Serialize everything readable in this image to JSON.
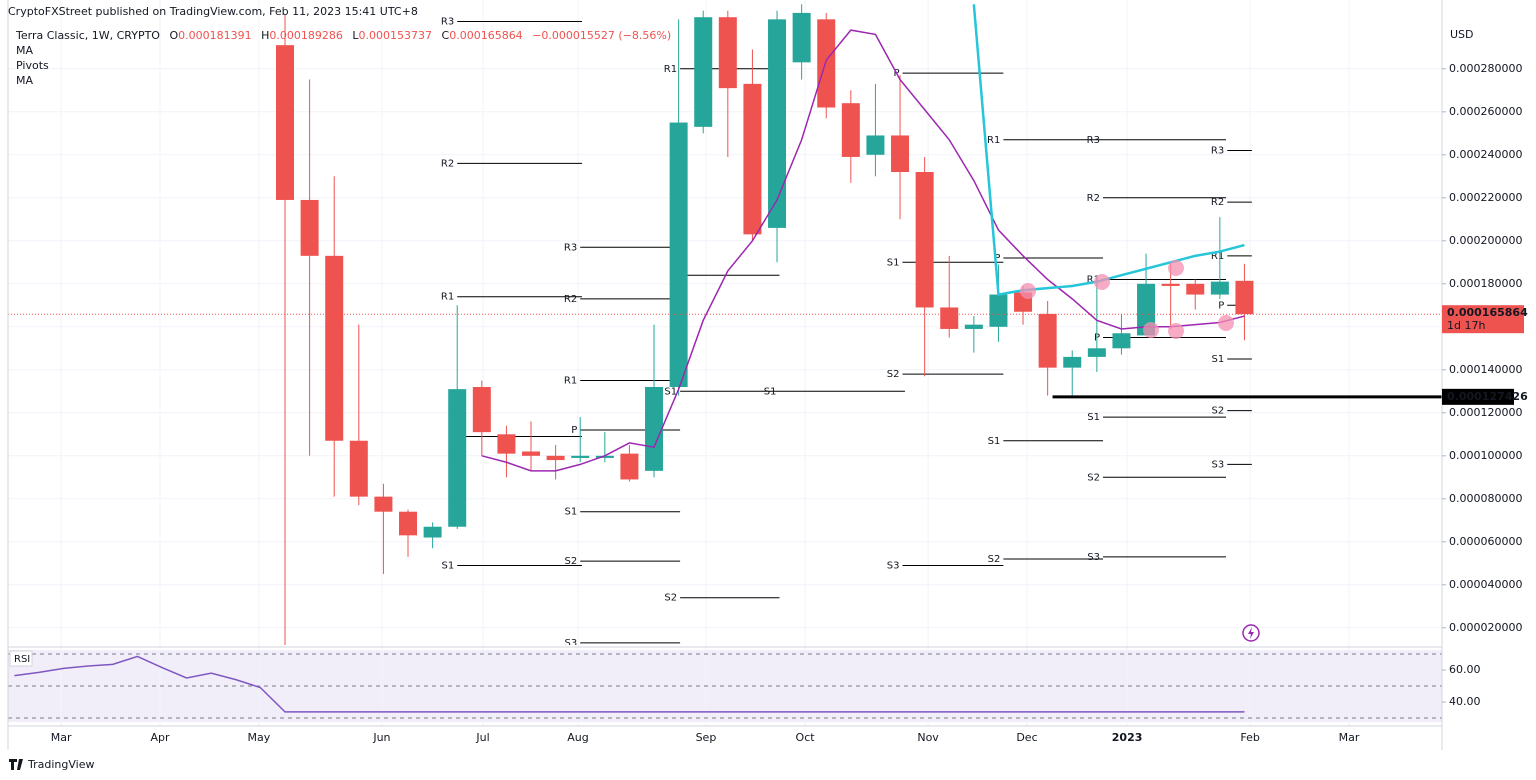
{
  "header": {
    "publisher": "CryptoFXStreet published on TradingView.com, Feb 11, 2023 15:41 UTC+8",
    "open_label": "O",
    "high_label": "H",
    "low_label": "L",
    "close_label": "C",
    "change": "−0.000015527 (−8.56%)",
    "brand": "TradingView"
  },
  "chart_data": [
    {
      "type": "candlestick",
      "title": "Terra Classic, 1W, CRYPTO",
      "axis_label": "USD",
      "up_color": "#26a69a",
      "down_color": "#ef5350",
      "x": [
        0,
        1,
        2,
        3,
        4,
        5,
        6,
        7,
        8,
        9,
        10,
        11,
        12,
        13,
        14,
        15,
        16,
        17,
        18,
        19,
        20,
        21,
        22,
        23,
        24,
        25,
        26,
        27,
        28,
        29,
        30,
        31,
        32,
        33,
        34,
        35,
        36,
        37,
        38,
        39
      ],
      "open": [
        0.000291,
        0.000219,
        0.000193,
        0.000107,
        8.1e-05,
        7.4e-05,
        6.2e-05,
        6.7e-05,
        0.000132,
        0.00011,
        0.000102,
        0.0001,
        9.9e-05,
        9.9e-05,
        0.000101,
        9.3e-05,
        0.000132,
        0.000253,
        0.000304,
        0.000273,
        0.000206,
        0.000283,
        0.000303,
        0.000264,
        0.00024,
        0.000249,
        0.000232,
        0.000169,
        0.000159,
        0.00016,
        0.000176,
        0.000166,
        0.000141,
        0.000146,
        0.00015,
        0.000156,
        0.00018,
        0.00018,
        0.000175,
        0.000181391
      ],
      "high": [
        0.000305,
        0.000275,
        0.00023,
        0.000161,
        8.7e-05,
        7.5e-05,
        6.9e-05,
        0.00017,
        0.000135,
        0.000114,
        0.000116,
        0.000105,
        0.000118,
        0.000111,
        0.000105,
        0.000161,
        0.000303,
        0.000307,
        0.000307,
        0.000289,
        0.000307,
        0.00031,
        0.000306,
        0.00027,
        0.000273,
        0.000277,
        0.000239,
        0.000193,
        0.000165,
        0.000189,
        0.000179,
        0.000172,
        0.000149,
        0.000184,
        0.000166,
        0.000194,
        0.00019,
        0.000182,
        0.000211,
        0.000189286
      ],
      "low": [
        1.2e-05,
        0.0001,
        8.1e-05,
        7.7e-05,
        4.5e-05,
        5.3e-05,
        5.7e-05,
        6.6e-05,
        0.0001,
        9e-05,
        9.3e-05,
        8.9e-05,
        9.7e-05,
        9.7e-05,
        8.8e-05,
        9e-05,
        0.000128,
        0.00025,
        0.000239,
        0.0002,
        0.00019,
        0.000275,
        0.000257,
        0.000227,
        0.00023,
        0.00021,
        0.000137,
        0.000155,
        0.000148,
        0.000153,
        0.000161,
        0.000128,
        0.000128,
        0.000139,
        0.000147,
        0.000156,
        0.000159,
        0.000168,
        0.000173,
        0.000153737
      ],
      "close": [
        0.000219,
        0.000193,
        0.000107,
        8.1e-05,
        7.4e-05,
        6.3e-05,
        6.7e-05,
        0.000131,
        0.000111,
        0.000101,
        0.0001,
        9.8e-05,
        0.0001,
        0.0001,
        8.9e-05,
        0.000132,
        0.000255,
        0.000304,
        0.000271,
        0.000203,
        0.000303,
        0.000306,
        0.000262,
        0.000239,
        0.000249,
        0.000232,
        0.000169,
        0.000159,
        0.000161,
        0.000175,
        0.000167,
        0.000141,
        0.000146,
        0.00015,
        0.000157,
        0.00018,
        0.000179,
        0.000175,
        0.000181,
        0.000165864
      ],
      "series": [
        {
          "name": "MA",
          "color": "#9c27b0",
          "values": [
            null,
            null,
            null,
            null,
            null,
            null,
            null,
            null,
            0.0001,
            9.7e-05,
            9.3e-05,
            9.3e-05,
            9.6e-05,
            0.0001,
            0.000106,
            0.000104,
            0.000131,
            0.000163,
            0.000186,
            0.0002,
            0.000219,
            0.000247,
            0.000284,
            0.000298,
            0.000296,
            0.000275,
            0.000261,
            0.000247,
            0.000228,
            0.000205,
            0.000193,
            0.000182,
            0.000173,
            0.000163,
            0.000159,
            0.00016,
            0.00016,
            0.000161,
            0.000162,
            0.000165
          ]
        },
        {
          "name": "MA",
          "color": "#26c6da",
          "values": [
            null,
            null,
            null,
            null,
            null,
            null,
            null,
            null,
            null,
            null,
            null,
            null,
            null,
            null,
            null,
            null,
            null,
            null,
            null,
            null,
            null,
            null,
            null,
            null,
            null,
            null,
            null,
            null,
            0.00031,
            0.000175,
            0.000177,
            0.000178,
            0.000179,
            0.000181,
            0.000184,
            0.000187,
            0.00019,
            0.000193,
            0.000195,
            0.000198
          ]
        }
      ],
      "pivots": {
        "name": "Pivots",
        "color": "#000000",
        "levels": [
          {
            "label": "R3",
            "value": 0.000302,
            "from": 7.0,
            "to": 12.07
          },
          {
            "label": "R2",
            "value": 0.000236,
            "from": 7.0,
            "to": 12.07
          },
          {
            "label": "R1",
            "value": 0.000174,
            "from": 7.0,
            "to": 12.07
          },
          {
            "label": "P",
            "value": 0.000109,
            "from": 7.0,
            "to": 12.07
          },
          {
            "label": "S1",
            "value": 4.9e-05,
            "from": 7.0,
            "to": 12.07
          },
          {
            "label": "R3",
            "value": 0.000197,
            "from": 12.0,
            "to": 16.06
          },
          {
            "label": "R2",
            "value": 0.000173,
            "from": 12.0,
            "to": 16.06
          },
          {
            "label": "R1",
            "value": 0.000135,
            "from": 12.0,
            "to": 16.06
          },
          {
            "label": "P",
            "value": 0.000112,
            "from": 12.0,
            "to": 16.06
          },
          {
            "label": "S1",
            "value": 7.4e-05,
            "from": 12.0,
            "to": 16.06
          },
          {
            "label": "S2",
            "value": 5.1e-05,
            "from": 12.0,
            "to": 16.06
          },
          {
            "label": "S3",
            "value": 1.3e-05,
            "from": 12.0,
            "to": 16.06
          },
          {
            "label": "R1",
            "value": 0.00028,
            "from": 16.06,
            "to": 20.1
          },
          {
            "label": "P",
            "value": 0.000184,
            "from": 16.06,
            "to": 20.1
          },
          {
            "label": "S1",
            "value": 0.00013,
            "from": 16.06,
            "to": 20.1
          },
          {
            "label": "S2",
            "value": 3.4e-05,
            "from": 16.06,
            "to": 20.1
          },
          {
            "label": "S1",
            "value": 0.00013,
            "from": 20.1,
            "to": 25.2
          },
          {
            "label": "P",
            "value": 0.000278,
            "from": 25.1,
            "to": 29.2
          },
          {
            "label": "S1",
            "value": 0.00019,
            "from": 25.1,
            "to": 29.2
          },
          {
            "label": "S2",
            "value": 0.000138,
            "from": 25.1,
            "to": 29.2
          },
          {
            "label": "S3",
            "value": 4.9e-05,
            "from": 25.1,
            "to": 29.2
          },
          {
            "label": "R1",
            "value": 0.000247,
            "from": 29.2,
            "to": 33.25
          },
          {
            "label": "P",
            "value": 0.000192,
            "from": 29.2,
            "to": 33.25
          },
          {
            "label": "S1",
            "value": 0.000107,
            "from": 29.2,
            "to": 33.25
          },
          {
            "label": "S2",
            "value": 5.2e-05,
            "from": 29.2,
            "to": 33.25
          },
          {
            "label": "R3",
            "value": 0.000247,
            "from": 33.25,
            "to": 38.25
          },
          {
            "label": "R2",
            "value": 0.00022,
            "from": 33.25,
            "to": 38.25
          },
          {
            "label": "R1",
            "value": 0.000182,
            "from": 33.25,
            "to": 38.25
          },
          {
            "label": "P",
            "value": 0.000155,
            "from": 33.25,
            "to": 38.25
          },
          {
            "label": "S1",
            "value": 0.000118,
            "from": 33.25,
            "to": 38.25
          },
          {
            "label": "S2",
            "value": 9e-05,
            "from": 33.25,
            "to": 38.25
          },
          {
            "label": "S3",
            "value": 5.3e-05,
            "from": 33.25,
            "to": 38.25
          },
          {
            "label": "R3",
            "value": 0.000242,
            "from": 38.3,
            "to": 39.3
          },
          {
            "label": "R2",
            "value": 0.000218,
            "from": 38.3,
            "to": 39.3
          },
          {
            "label": "R1",
            "value": 0.000193,
            "from": 38.3,
            "to": 39.3
          },
          {
            "label": "P",
            "value": 0.00017,
            "from": 38.3,
            "to": 39.3
          },
          {
            "label": "S1",
            "value": 0.000145,
            "from": 38.3,
            "to": 39.3
          },
          {
            "label": "S2",
            "value": 0.000121,
            "from": 38.3,
            "to": 39.3
          },
          {
            "label": "S3",
            "value": 9.6e-05,
            "from": 38.3,
            "to": 39.3
          }
        ]
      },
      "support": {
        "value": 0.000127426,
        "from": 31.2
      },
      "countdown": "1d 17h",
      "xlim": [
        -11.26,
        47.03
      ],
      "ylim": [
        1.2e-05,
        0.000312
      ],
      "xticks": [
        {
          "value": -9.1,
          "label": "Mar"
        },
        {
          "value": -5.08,
          "label": "Apr"
        },
        {
          "value": -1.06,
          "label": "May"
        },
        {
          "value": 3.94,
          "label": "Jun"
        },
        {
          "value": 8.05,
          "label": "Jul"
        },
        {
          "value": 11.91,
          "label": "Aug"
        },
        {
          "value": 17.11,
          "label": "Sep"
        },
        {
          "value": 21.14,
          "label": "Oct"
        },
        {
          "value": 26.14,
          "label": "Nov"
        },
        {
          "value": 30.16,
          "label": "Dec"
        },
        {
          "value": 34.23,
          "label": "2023"
        },
        {
          "value": 39.23,
          "label": "Feb"
        },
        {
          "value": 43.25,
          "label": "Mar"
        }
      ],
      "yticks": [
        {
          "value": 2e-05,
          "label": "0.000020000"
        },
        {
          "value": 4e-05,
          "label": "0.000040000"
        },
        {
          "value": 6e-05,
          "label": "0.000060000"
        },
        {
          "value": 8e-05,
          "label": "0.000080000"
        },
        {
          "value": 0.0001,
          "label": "0.000100000"
        },
        {
          "value": 0.00012,
          "label": "0.000120000"
        },
        {
          "value": 0.00014,
          "label": "0.000140000"
        },
        {
          "value": 0.00016,
          "label": "0.000160000"
        },
        {
          "value": 0.00018,
          "label": "0.000180000"
        },
        {
          "value": 0.0002,
          "label": "0.000200000"
        },
        {
          "value": 0.00022,
          "label": "0.000220000"
        },
        {
          "value": 0.00024,
          "label": "0.000240000"
        },
        {
          "value": 0.00026,
          "label": "0.000260000"
        },
        {
          "value": 0.00028,
          "label": "0.000280000"
        }
      ],
      "grid": true
    },
    {
      "type": "line",
      "title": "RSI",
      "color": "#7e57c2",
      "x": [
        -11,
        -10,
        -9,
        -8,
        -7,
        -6,
        -5,
        -4,
        -3,
        -2,
        -1,
        0,
        39
      ],
      "values": [
        56.5,
        58.5,
        61,
        62.5,
        63.5,
        68.5,
        61.5,
        55,
        58,
        54,
        49,
        33.8,
        33.8
      ],
      "bands": [
        70,
        50,
        30
      ],
      "xlim": [
        -11.26,
        47.03
      ],
      "ylim": [
        27.5,
        72.5
      ],
      "yticks": [
        {
          "value": 60,
          "label": "60.00"
        },
        {
          "value": 40,
          "label": "40.00"
        }
      ]
    }
  ]
}
